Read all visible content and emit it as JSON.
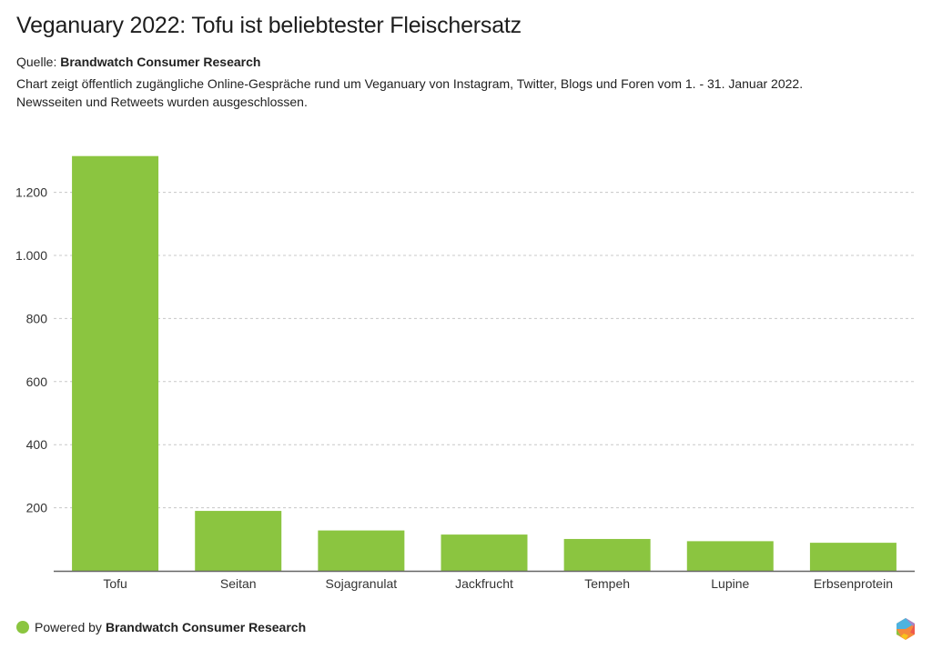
{
  "header": {
    "title": "Veganuary 2022: Tofu ist beliebtester Fleischersatz",
    "source_label": "Quelle:",
    "source_name": "Brandwatch Consumer Research",
    "description_line1": "Chart zeigt öffentlich zugängliche Online-Gespräche rund um Veganuary von Instagram, Twitter, Blogs und Foren vom 1. - 31. Januar 2022.",
    "description_line2": "Newsseiten und Retweets wurden ausgeschlossen."
  },
  "footer": {
    "powered_label": "Powered by",
    "powered_name": "Brandwatch Consumer Research",
    "dot_color": "#8bc540",
    "logo_icon": "brandwatch-hexagon-logo"
  },
  "colors": {
    "bar": "#8bc540",
    "grid": "#c8c8c8",
    "axis": "#666666",
    "text": "#333333"
  },
  "chart_data": {
    "type": "bar",
    "title": "Veganuary 2022: Tofu ist beliebtester Fleischersatz",
    "xlabel": "",
    "ylabel": "",
    "categories": [
      "Tofu",
      "Seitan",
      "Sojagranulat",
      "Jackfrucht",
      "Tempeh",
      "Lupine",
      "Erbsenprotein"
    ],
    "values": [
      1315,
      190,
      128,
      115,
      101,
      94,
      89
    ],
    "ylim": [
      0,
      1340
    ],
    "yticks": [
      200,
      400,
      600,
      800,
      1000,
      1200
    ],
    "ytick_labels": [
      "200",
      "400",
      "600",
      "800",
      "1.000",
      "1.200"
    ],
    "grid": true,
    "legend": "none"
  }
}
